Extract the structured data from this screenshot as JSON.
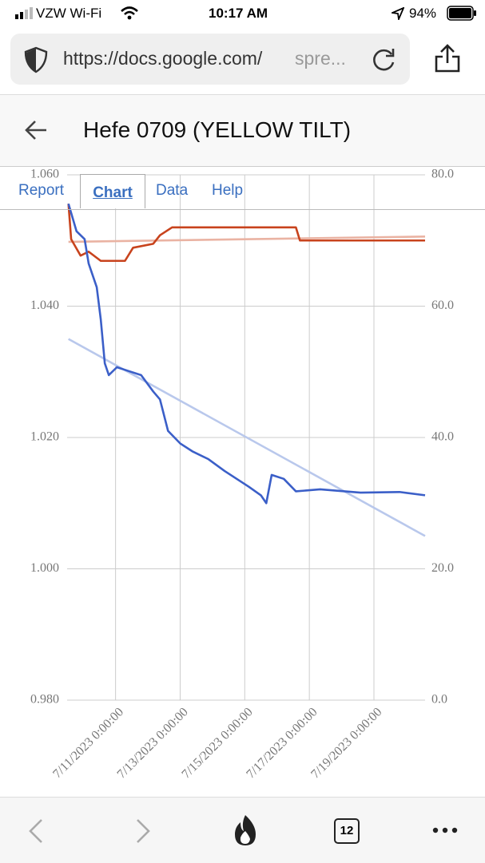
{
  "status_bar": {
    "carrier": "VZW Wi-Fi",
    "time": "10:17 AM",
    "battery": "94%"
  },
  "address_bar": {
    "url_host": "https://docs.google.com/",
    "url_rest": "spre..."
  },
  "header": {
    "title": "Hefe 0709 (YELLOW TILT)"
  },
  "tabs": [
    "Report",
    "Chart",
    "Data",
    "Help"
  ],
  "toolbar": {
    "tab_count": 12
  },
  "chart_data": {
    "type": "line",
    "xlim": [
      "7/9/2023 12:00:00",
      "7/20/2023 14:00:00"
    ],
    "xticks": [
      "7/11/2023 0:00:00",
      "7/13/2023 0:00:00",
      "7/15/2023 0:00:00",
      "7/17/2023 0:00:00",
      "7/19/2023 0:00:00"
    ],
    "ylim": [
      0.98,
      1.06
    ],
    "yticks": [
      {
        "value": 0.98,
        "label": "0.980"
      },
      {
        "value": 1.0,
        "label": "1.000"
      },
      {
        "value": 1.02,
        "label": "1.020"
      },
      {
        "value": 1.04,
        "label": "1.040"
      },
      {
        "value": 1.06,
        "label": "1.060"
      }
    ],
    "y2lim": [
      0,
      80
    ],
    "y2ticks": [
      {
        "value": 0,
        "label": "0.0"
      },
      {
        "value": 20,
        "label": "20.0"
      },
      {
        "value": 40,
        "label": "40.0"
      },
      {
        "value": 60,
        "label": "60.0"
      },
      {
        "value": 80,
        "label": "80.0"
      }
    ],
    "grid": true,
    "series": [
      {
        "color": "#eab3a3",
        "axis": "y2",
        "x": [
          "7/9/2023 13:00:00",
          "7/20/2023 14:00:00"
        ],
        "values": [
          69.8,
          70.6
        ]
      },
      {
        "color": "#b9c8ec",
        "x": [
          "7/9/2023 13:00:00",
          "7/20/2023 14:00:00"
        ],
        "values": [
          1.035,
          1.005
        ]
      },
      {
        "color": "#c8431d",
        "axis": "y2",
        "x": [
          "7/9/2023 13:00:00",
          "7/9/2023 15:00:00",
          "7/9/2023 22:00:00",
          "7/10/2023 4:00:00",
          "7/10/2023 13:00:00",
          "7/11/2023 7:00:00",
          "7/11/2023 13:00:00",
          "7/12/2023 4:00:00",
          "7/12/2023 9:00:00",
          "7/12/2023 18:00:00",
          "7/16/2023 14:00:00",
          "7/16/2023 17:00:00",
          "7/20/2023 14:00:00"
        ],
        "values": [
          75.6,
          70.2,
          67.7,
          68.3,
          66.9,
          66.9,
          68.9,
          69.5,
          70.8,
          72.0,
          72.0,
          70.0,
          70.0
        ]
      },
      {
        "color": "#3b5fc8",
        "x": [
          "7/9/2023 13:00:00",
          "7/9/2023 19:00:00",
          "7/10/2023 1:00:00",
          "7/10/2023 4:00:00",
          "7/10/2023 10:00:00",
          "7/10/2023 13:00:00",
          "7/10/2023 16:00:00",
          "7/10/2023 19:00:00",
          "7/11/2023 1:00:00",
          "7/11/2023 10:00:00",
          "7/11/2023 19:00:00",
          "7/12/2023 4:00:00",
          "7/12/2023 9:00:00",
          "7/12/2023 15:00:00",
          "7/13/2023 0:00:00",
          "7/13/2023 9:00:00",
          "7/13/2023 21:00:00",
          "7/14/2023 9:00:00",
          "7/14/2023 18:00:00",
          "7/15/2023 3:00:00",
          "7/15/2023 12:00:00",
          "7/15/2023 16:00:00",
          "7/15/2023 20:00:00",
          "7/16/2023 5:00:00",
          "7/16/2023 14:00:00",
          "7/17/2023 8:00:00",
          "7/18/2023 14:00:00",
          "7/19/2023 19:00:00",
          "7/20/2023 14:00:00"
        ],
        "values": [
          1.0556,
          1.0514,
          1.0502,
          1.0465,
          1.0429,
          1.038,
          1.0313,
          1.0295,
          1.0307,
          1.0301,
          1.0295,
          1.027,
          1.0258,
          1.021,
          1.0191,
          1.0179,
          1.0167,
          1.0149,
          1.0137,
          1.0125,
          1.0112,
          1.01,
          1.0143,
          1.0137,
          1.0118,
          1.0121,
          1.0116,
          1.0117,
          1.0112
        ]
      }
    ]
  }
}
